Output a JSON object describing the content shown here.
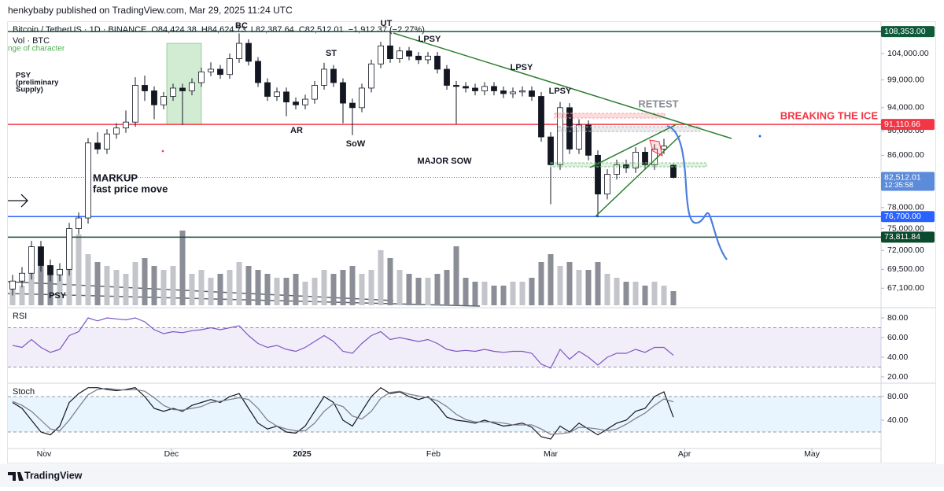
{
  "header": {
    "published": "henkybaby published on TradingView.com, Mar 29, 2025 11:24 UTC"
  },
  "footer": {
    "brand": "TradingView"
  },
  "chart_data": [
    {
      "type": "candlestick",
      "title": "Bitcoin / TetherUS · 1D · BINANCE",
      "ohlc_labels": [
        "O84,424.38",
        "H84,624.73",
        "L82,387.64",
        "C82,512.01",
        "−1,912.37 (−2.27%)"
      ],
      "volume_label": "Vol · BTC",
      "indicator_label": "nge of character",
      "log_scale": true,
      "grid": false,
      "ylim": [
        64800,
        110300
      ],
      "yticks": [
        {
          "value": 104000,
          "label": "104,000.00"
        },
        {
          "value": 99000,
          "label": "99,000.00"
        },
        {
          "value": 94000,
          "label": "94,000.00"
        },
        {
          "value": 90000,
          "label": "90,000.00"
        },
        {
          "value": 86000,
          "label": "86,000.00"
        },
        {
          "value": 78000,
          "label": "78,000.00"
        },
        {
          "value": 75000,
          "label": "75,000.00"
        },
        {
          "value": 72000,
          "label": "72,000.00"
        },
        {
          "value": 69500,
          "label": "69,500.00"
        },
        {
          "value": 67100,
          "label": "67,100.00"
        }
      ],
      "xlim": [
        -0.5,
        92
      ],
      "xticks": [
        {
          "value": 3.33,
          "label": "Nov"
        },
        {
          "value": 16.83,
          "label": "Dec"
        },
        {
          "value": 30.67,
          "label": "2025"
        },
        {
          "value": 44.58,
          "label": "Feb"
        },
        {
          "value": 57,
          "label": "Mar"
        },
        {
          "value": 71.17,
          "label": "Apr"
        },
        {
          "value": 84.67,
          "label": "May"
        }
      ],
      "open": [
        67000,
        68000,
        69000,
        72500,
        70000,
        68800,
        69500,
        75000,
        76500,
        88000,
        87000,
        89500,
        90500,
        91500,
        98000,
        97000,
        94500,
        96000,
        97500,
        97000,
        98500,
        100500,
        101000,
        100000,
        103000,
        106000,
        102500,
        98500,
        96000,
        96800,
        95000,
        94500,
        95500,
        98000,
        101000,
        98500,
        94800,
        94000,
        97500,
        102000,
        105500,
        103000,
        104500,
        103500,
        102800,
        103500,
        101000,
        98000,
        97800,
        97500,
        97000,
        97800,
        97000,
        96500,
        96800,
        97000,
        96000,
        89000,
        84500,
        94000,
        87000,
        91000,
        86000,
        80000,
        83000,
        84500,
        84000,
        86500,
        84500,
        87000,
        84424.38
      ],
      "high": [
        68800,
        69800,
        73300,
        73300,
        70800,
        70300,
        75800,
        77300,
        88800,
        89800,
        90300,
        91300,
        93500,
        99500,
        99800,
        97800,
        96800,
        98300,
        98300,
        99300,
        101300,
        102300,
        101800,
        104000,
        108000,
        106800,
        103300,
        99300,
        97600,
        97600,
        95800,
        96300,
        98800,
        102200,
        101800,
        99300,
        95600,
        98300,
        102800,
        106300,
        108353,
        105300,
        105300,
        104300,
        104300,
        104300,
        101800,
        98800,
        98600,
        98300,
        98600,
        98600,
        97800,
        97600,
        97800,
        97800,
        96800,
        89800,
        95000,
        94800,
        92000,
        91800,
        86800,
        83800,
        85300,
        85300,
        87300,
        87300,
        87800,
        88700,
        84624.73
      ],
      "low": [
        66200,
        67200,
        68200,
        69200,
        68000,
        68000,
        68700,
        74200,
        75700,
        86200,
        86200,
        88700,
        89700,
        90700,
        95200,
        92000,
        93700,
        95200,
        91000,
        96200,
        97700,
        99700,
        99200,
        99200,
        102200,
        101700,
        97700,
        95200,
        95200,
        92500,
        93700,
        93700,
        94700,
        97200,
        97700,
        91300,
        89300,
        93200,
        96700,
        101200,
        102200,
        102200,
        102700,
        102000,
        102000,
        100200,
        97200,
        91200,
        96700,
        96200,
        96200,
        96200,
        95700,
        95700,
        96000,
        95200,
        88200,
        78500,
        83700,
        86200,
        86200,
        85200,
        76600,
        79200,
        82200,
        83200,
        83200,
        83700,
        83700,
        86200,
        82387.64
      ],
      "close": [
        68000,
        69000,
        72500,
        70000,
        68800,
        69500,
        75000,
        76500,
        88000,
        87000,
        89500,
        90500,
        91500,
        98000,
        97000,
        94500,
        96000,
        97500,
        97000,
        98500,
        100500,
        101000,
        100000,
        103000,
        106000,
        102500,
        98500,
        96000,
        96800,
        95000,
        94500,
        95500,
        98000,
        101000,
        98500,
        94800,
        94000,
        97500,
        102000,
        105500,
        103000,
        104500,
        103500,
        102800,
        103500,
        101000,
        98000,
        97800,
        97500,
        97000,
        97800,
        97000,
        96500,
        96800,
        97000,
        96000,
        89000,
        84500,
        94000,
        87000,
        91000,
        86000,
        80000,
        83000,
        84500,
        84000,
        86500,
        84500,
        87000,
        87500,
        82512.01
      ],
      "volume": [
        30,
        25,
        75,
        60,
        45,
        40,
        60,
        90,
        65,
        55,
        50,
        45,
        40,
        55,
        60,
        50,
        45,
        50,
        95,
        40,
        45,
        35,
        40,
        45,
        55,
        50,
        45,
        40,
        35,
        35,
        40,
        30,
        35,
        45,
        40,
        45,
        50,
        40,
        45,
        70,
        60,
        45,
        40,
        35,
        35,
        40,
        45,
        75,
        35,
        30,
        30,
        25,
        25,
        30,
        30,
        35,
        55,
        65,
        50,
        55,
        45,
        45,
        55,
        40,
        35,
        30,
        30,
        25,
        30,
        25,
        18
      ],
      "up_color": "#ffffff",
      "down_color": "#131722",
      "volume_up_color": "#c3c5cb",
      "volume_down_color": "#8b8e97",
      "levels": [
        {
          "value": 108353,
          "label": "108,353.00",
          "color": "#0e5a3a"
        },
        {
          "value": 91110.66,
          "label": "91,110.66",
          "color": "#f23645"
        },
        {
          "value": 82512.01,
          "label": "82,512.01",
          "countdown": "12:35:58",
          "color": "#5b8bd9",
          "dotted": true
        },
        {
          "value": 76700,
          "label": "76,700.00",
          "color": "#2962ff"
        },
        {
          "value": 73811.84,
          "label": "73,811.84",
          "color": "#0b4a2c"
        }
      ],
      "annotations": [
        "BC",
        "UT",
        "LPSY",
        "ST",
        "LPSY",
        "LPSY",
        "RETEST",
        "BREAKING THE ICE",
        "PSY",
        "(preliminary",
        "Supply)",
        "AR",
        "SoW",
        "MAJOR SOW",
        "MARKUP",
        "fast price move",
        "PSY"
      ]
    },
    {
      "type": "line",
      "title": "RSI",
      "ylim": [
        14.4,
        89.6
      ],
      "yticks": [
        {
          "value": 80,
          "label": "80.00"
        },
        {
          "value": 60,
          "label": "60.00"
        },
        {
          "value": 40,
          "label": "40.00"
        },
        {
          "value": 20,
          "label": "20.00"
        }
      ],
      "band": [
        30,
        70
      ],
      "band_color": "#7e57c2",
      "series": [
        {
          "color": "#7e57c2",
          "values": [
            52,
            50,
            58,
            50,
            45,
            48,
            62,
            66,
            80,
            77,
            80,
            79,
            78,
            80,
            76,
            68,
            64,
            66,
            65,
            67,
            68,
            70,
            68,
            70,
            72,
            62,
            54,
            50,
            52,
            48,
            46,
            50,
            56,
            62,
            56,
            46,
            44,
            54,
            62,
            66,
            58,
            60,
            58,
            56,
            58,
            54,
            48,
            46,
            47,
            46,
            48,
            46,
            45,
            46,
            46,
            44,
            33,
            29,
            48,
            38,
            46,
            40,
            32,
            40,
            44,
            44,
            48,
            45,
            50,
            50,
            42
          ]
        }
      ]
    },
    {
      "type": "line",
      "title": "Stoch",
      "ylim": [
        -8,
        101.3
      ],
      "yticks": [
        {
          "value": 80,
          "label": "80.00"
        },
        {
          "value": 40,
          "label": "40.00"
        }
      ],
      "band": [
        20,
        80
      ],
      "band_color": "#2196f3",
      "series": [
        {
          "color": "#131722",
          "values": [
            70,
            60,
            40,
            20,
            15,
            30,
            70,
            85,
            95,
            95,
            92,
            90,
            92,
            95,
            80,
            60,
            55,
            60,
            55,
            65,
            70,
            75,
            70,
            80,
            85,
            60,
            35,
            25,
            30,
            20,
            18,
            30,
            55,
            80,
            70,
            40,
            30,
            55,
            80,
            95,
            85,
            88,
            80,
            75,
            80,
            65,
            45,
            40,
            38,
            35,
            40,
            35,
            30,
            32,
            35,
            28,
            12,
            8,
            30,
            20,
            35,
            25,
            15,
            25,
            35,
            40,
            55,
            60,
            80,
            88,
            45
          ]
        },
        {
          "color": "#787b86",
          "values": [
            72,
            65,
            55,
            40,
            25,
            22,
            40,
            62,
            83,
            92,
            94,
            92,
            91,
            92,
            89,
            78,
            65,
            58,
            57,
            60,
            63,
            70,
            72,
            75,
            78,
            75,
            60,
            40,
            30,
            25,
            22,
            22,
            35,
            55,
            68,
            63,
            47,
            42,
            55,
            77,
            87,
            89,
            84,
            81,
            78,
            73,
            63,
            50,
            41,
            37,
            37,
            37,
            35,
            32,
            32,
            32,
            25,
            16,
            17,
            19,
            28,
            27,
            25,
            22,
            25,
            33,
            43,
            52,
            65,
            76,
            71
          ]
        }
      ]
    }
  ]
}
